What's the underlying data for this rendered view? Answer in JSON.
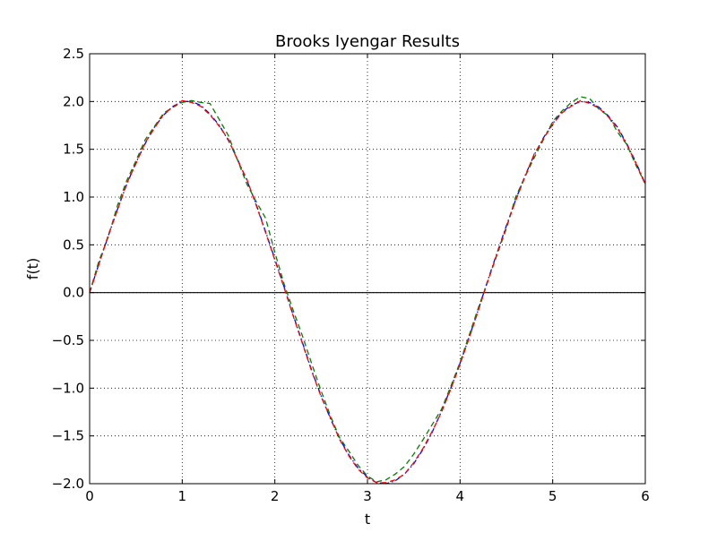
{
  "chart_data": {
    "type": "line",
    "title": "Brooks Iyengar Results",
    "xlabel": "t",
    "ylabel": "f(t)",
    "xlim": [
      0,
      6
    ],
    "ylim": [
      -2.0,
      2.5
    ],
    "grid": true,
    "x_ticks": [
      0,
      1,
      2,
      3,
      4,
      5,
      6
    ],
    "x_tick_labels": [
      "0",
      "1",
      "2",
      "3",
      "4",
      "5",
      "6"
    ],
    "y_ticks": [
      -2.0,
      -1.5,
      -1.0,
      -0.5,
      0.0,
      0.5,
      1.0,
      1.5,
      2.0,
      2.5
    ],
    "y_tick_labels": [
      "−2.0",
      "−1.5",
      "−1.0",
      "−0.5",
      "0.0",
      "0.5",
      "1.0",
      "1.5",
      "2.0",
      "2.5"
    ],
    "reference_line": {
      "y": 0,
      "color": "#000000"
    },
    "series": [
      {
        "color": "#0000ff",
        "style": "dashdot",
        "x": [
          0,
          0.1,
          0.2,
          0.3,
          0.4,
          0.5,
          0.6,
          0.7,
          0.8,
          0.9,
          1.0,
          1.1,
          1.2,
          1.3,
          1.4,
          1.5,
          1.6,
          1.7,
          1.8,
          1.9,
          2.0,
          2.1,
          2.2,
          2.3,
          2.4,
          2.5,
          2.6,
          2.7,
          2.8,
          2.9,
          3.0,
          3.1,
          3.2,
          3.3,
          3.4,
          3.5,
          3.6,
          3.7,
          3.8,
          3.9,
          4.0,
          4.1,
          4.2,
          4.3,
          4.4,
          4.5,
          4.6,
          4.7,
          4.8,
          4.9,
          5.0,
          5.1,
          5.2,
          5.3,
          5.4,
          5.5,
          5.6,
          5.7,
          5.8,
          5.9,
          6.0
        ],
        "values": [
          0.0,
          0.3,
          0.59,
          0.87,
          1.13,
          1.36,
          1.56,
          1.73,
          1.86,
          1.95,
          2.0,
          2.0,
          1.96,
          1.87,
          1.75,
          1.59,
          1.39,
          1.17,
          0.92,
          0.64,
          0.35,
          0.06,
          -0.24,
          -0.53,
          -0.82,
          -1.08,
          -1.32,
          -1.53,
          -1.7,
          -1.84,
          -1.93,
          -1.99,
          -2.0,
          -1.97,
          -1.9,
          -1.79,
          -1.64,
          -1.46,
          -1.24,
          -1.0,
          -0.74,
          -0.46,
          -0.17,
          0.13,
          0.42,
          0.7,
          0.97,
          1.22,
          1.44,
          1.62,
          1.77,
          1.89,
          1.96,
          2.0,
          1.99,
          1.94,
          1.85,
          1.73,
          1.56,
          1.36,
          1.14
        ]
      },
      {
        "color": "#008000",
        "style": "dashed",
        "x": [
          0,
          0.1,
          0.2,
          0.3,
          0.4,
          0.5,
          0.6,
          0.7,
          0.8,
          0.9,
          1.0,
          1.1,
          1.2,
          1.3,
          1.4,
          1.5,
          1.6,
          1.7,
          1.8,
          1.9,
          2.0,
          2.1,
          2.2,
          2.3,
          2.4,
          2.5,
          2.6,
          2.7,
          2.8,
          2.9,
          3.0,
          3.1,
          3.2,
          3.3,
          3.4,
          3.5,
          3.6,
          3.7,
          3.8,
          3.9,
          4.0,
          4.1,
          4.2,
          4.3,
          4.4,
          4.5,
          4.6,
          4.7,
          4.8,
          4.9,
          5.0,
          5.1,
          5.2,
          5.3,
          5.4,
          5.5,
          5.6,
          5.7,
          5.8,
          5.9,
          6.0
        ],
        "values": [
          0.0,
          0.33,
          0.58,
          0.91,
          1.17,
          1.38,
          1.6,
          1.74,
          1.88,
          1.94,
          1.99,
          2.01,
          1.99,
          1.98,
          1.81,
          1.64,
          1.38,
          1.13,
          0.95,
          0.78,
          0.42,
          0.09,
          -0.19,
          -0.46,
          -0.75,
          -1.03,
          -1.29,
          -1.52,
          -1.66,
          -1.81,
          -1.92,
          -1.98,
          -1.96,
          -1.9,
          -1.82,
          -1.69,
          -1.54,
          -1.38,
          -1.22,
          -0.98,
          -0.73,
          -0.44,
          -0.15,
          0.12,
          0.4,
          0.67,
          1.0,
          1.21,
          1.41,
          1.6,
          1.79,
          1.9,
          1.99,
          2.05,
          2.03,
          1.92,
          1.85,
          1.68,
          1.55,
          1.33,
          1.14
        ]
      },
      {
        "color": "#ff0000",
        "style": "dashed",
        "x": [
          0,
          0.1,
          0.2,
          0.3,
          0.4,
          0.5,
          0.6,
          0.7,
          0.8,
          0.9,
          1.0,
          1.1,
          1.2,
          1.3,
          1.4,
          1.5,
          1.6,
          1.7,
          1.8,
          1.9,
          2.0,
          2.1,
          2.2,
          2.3,
          2.4,
          2.5,
          2.6,
          2.7,
          2.8,
          2.9,
          3.0,
          3.1,
          3.2,
          3.3,
          3.4,
          3.5,
          3.6,
          3.7,
          3.8,
          3.9,
          4.0,
          4.1,
          4.2,
          4.3,
          4.4,
          4.5,
          4.6,
          4.7,
          4.8,
          4.9,
          5.0,
          5.1,
          5.2,
          5.3,
          5.4,
          5.5,
          5.6,
          5.7,
          5.8,
          5.9,
          6.0
        ],
        "values": [
          0.0,
          0.29,
          0.6,
          0.86,
          1.14,
          1.35,
          1.57,
          1.72,
          1.87,
          1.94,
          2.01,
          1.99,
          1.95,
          1.86,
          1.74,
          1.6,
          1.38,
          1.18,
          0.91,
          0.63,
          0.34,
          0.05,
          -0.25,
          -0.54,
          -0.83,
          -1.09,
          -1.31,
          -1.54,
          -1.71,
          -1.85,
          -1.94,
          -1.99,
          -1.99,
          -1.96,
          -1.9,
          -1.78,
          -1.63,
          -1.45,
          -1.25,
          -1.01,
          -0.75,
          -0.47,
          -0.18,
          0.12,
          0.41,
          0.69,
          0.96,
          1.21,
          1.45,
          1.61,
          1.76,
          1.88,
          1.95,
          2.01,
          1.98,
          1.93,
          1.84,
          1.72,
          1.55,
          1.35,
          1.13
        ]
      }
    ]
  }
}
